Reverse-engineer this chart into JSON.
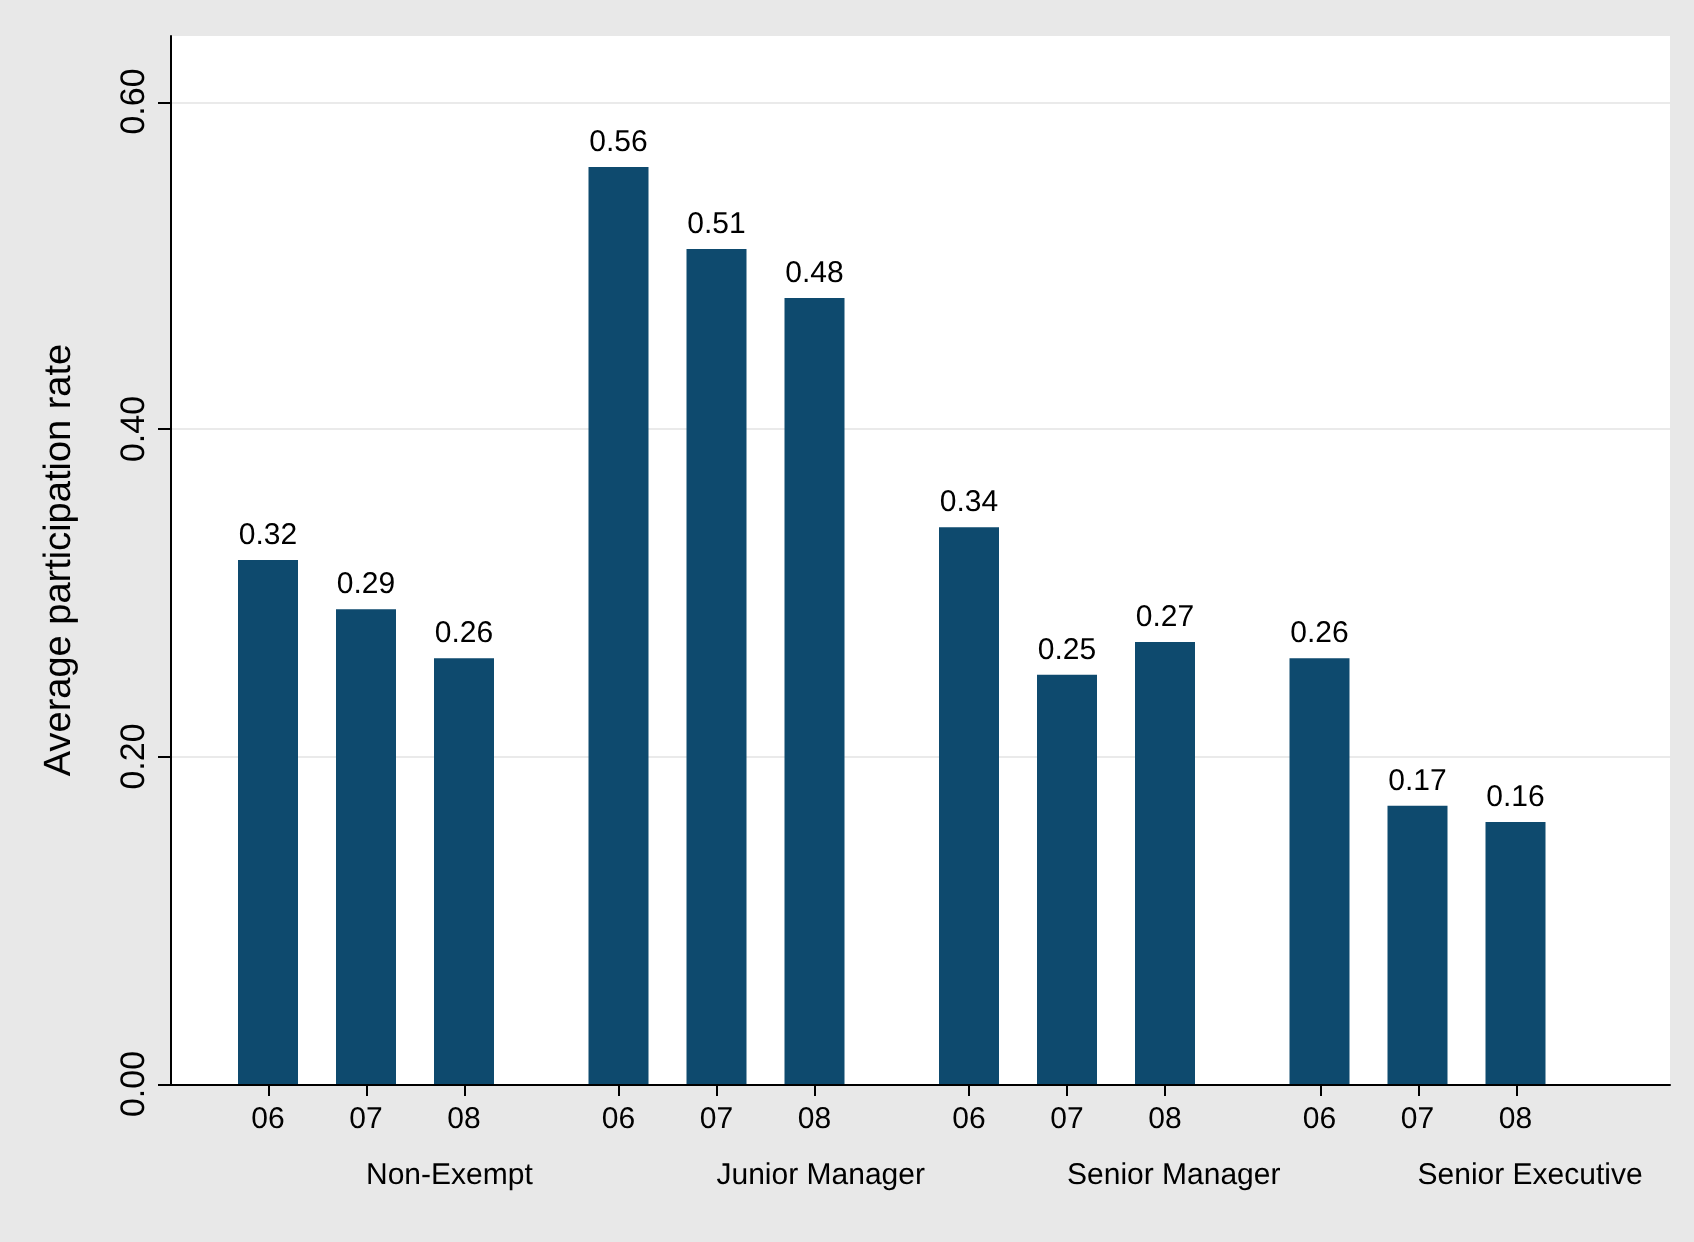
{
  "chart_data": {
    "type": "bar",
    "ylabel": "Average participation rate",
    "categories": [
      "06",
      "07",
      "08",
      "06",
      "07",
      "08",
      "06",
      "07",
      "08",
      "06",
      "07",
      "08"
    ],
    "values": [
      0.32,
      0.29,
      0.26,
      0.56,
      0.51,
      0.48,
      0.34,
      0.25,
      0.27,
      0.26,
      0.17,
      0.16
    ],
    "color": "#0e4a6e",
    "annotations": [
      "Non-Exempt",
      "Junior Manager",
      "Senior Manager",
      "Senior Executive"
    ],
    "ylim": [
      0,
      0.64
    ],
    "yticks": [
      {
        "value": 0,
        "label": "0.00"
      },
      {
        "value": 0.2,
        "label": "0.20"
      },
      {
        "value": 0.4,
        "label": "0.40"
      },
      {
        "value": 0.6,
        "label": "0.60"
      }
    ],
    "grid": "y",
    "data_labels": true
  }
}
